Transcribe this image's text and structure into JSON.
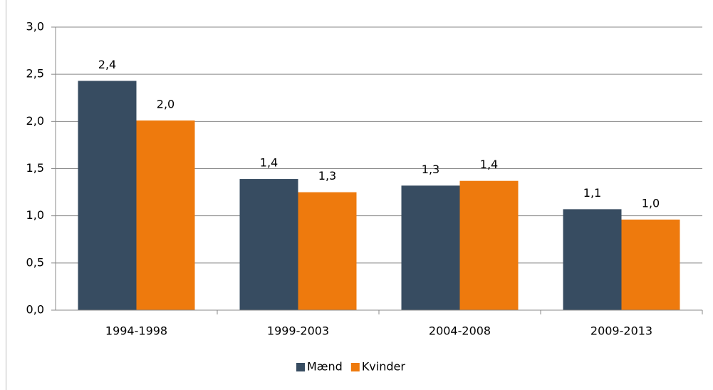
{
  "chart_data": {
    "type": "bar",
    "categories": [
      "1994-1998",
      "1999-2003",
      "2004-2008",
      "2009-2013"
    ],
    "series": [
      {
        "name": "Mænd",
        "color": "#374c61",
        "values": [
          2.43,
          1.39,
          1.32,
          1.07
        ],
        "value_labels": [
          "2,4",
          "1,4",
          "1,3",
          "1,1"
        ]
      },
      {
        "name": "Kvinder",
        "color": "#ee7a0d",
        "values": [
          2.01,
          1.25,
          1.37,
          0.96
        ],
        "value_labels": [
          "2,0",
          "1,3",
          "1,4",
          "1,0"
        ]
      }
    ],
    "ylim": [
      0,
      3
    ],
    "yticks": [
      {
        "value": 0,
        "label": "0,0"
      },
      {
        "value": 0.5,
        "label": "0,5"
      },
      {
        "value": 1,
        "label": "1,0"
      },
      {
        "value": 1.5,
        "label": "1,5"
      },
      {
        "value": 2,
        "label": "2,0"
      },
      {
        "value": 2.5,
        "label": "2,5"
      },
      {
        "value": 3,
        "label": "3,0"
      }
    ],
    "grid": true,
    "legend": "bottom"
  }
}
